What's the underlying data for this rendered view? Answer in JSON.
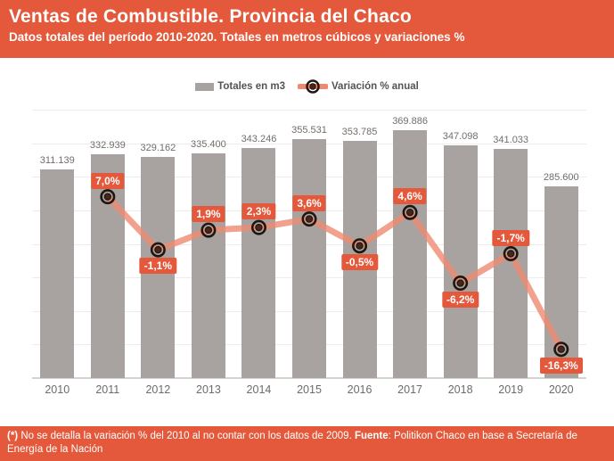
{
  "header": {
    "title": "Ventas de Combustible. Provincia del Chaco",
    "subtitle": "Datos totales del período 2010-2020. Totales en metros cúbicos y variaciones %"
  },
  "legend": {
    "bars_label": "Totales en m3",
    "line_label": "Variación % anual"
  },
  "footer": {
    "note_prefix": "(*)",
    "note": " No se detalla la variación % del 2010 al no contar con los datos de 2009. ",
    "source_label": "Fuente",
    "source": ": Politikon Chaco en base a Secretaría de Energía de la Nación"
  },
  "colors": {
    "accent_orange": "#E4593B",
    "line_salmon": "#ED8A70",
    "bar_gray": "#A8A3A0",
    "marker_ring": "#1F1610",
    "marker_center": "#48251A",
    "value_text": "#716E6C",
    "gridline": "#EEECEB"
  },
  "chart_data": {
    "type": "bar",
    "title": "Ventas de Combustible. Provincia del Chaco",
    "subtitle": "Datos totales del período 2010-2020. Totales en metros cúbicos y variaciones %",
    "categories": [
      "2010",
      "2011",
      "2012",
      "2013",
      "2014",
      "2015",
      "2016",
      "2017",
      "2018",
      "2019",
      "2020"
    ],
    "series": [
      {
        "name": "Totales en m3",
        "type": "bar",
        "values": [
          311139,
          332939,
          329162,
          335400,
          343246,
          355531,
          353785,
          369886,
          347098,
          341033,
          285600
        ],
        "labels": [
          "311.139",
          "332.939",
          "329.162",
          "335.400",
          "343.246",
          "355.531",
          "353.785",
          "369.886",
          "347.098",
          "341.033",
          "285.600"
        ]
      },
      {
        "name": "Variación % anual",
        "type": "line",
        "values": [
          null,
          7.0,
          -1.1,
          1.9,
          2.3,
          3.6,
          -0.5,
          4.6,
          -6.2,
          -1.7,
          -16.3
        ],
        "labels": [
          null,
          "7,0%",
          "-1,1%",
          "1,9%",
          "2,3%",
          "3,6%",
          "-0,5%",
          "4,6%",
          "-6,2%",
          "-1,7%",
          "-16,3%"
        ],
        "label_side": [
          null,
          "above",
          "below",
          "above",
          "above",
          "above",
          "below",
          "above",
          "below",
          "above",
          "below"
        ]
      }
    ],
    "xlabel": "",
    "ylabel": "",
    "ylim_bars": [
      0,
      400000
    ],
    "grid_step": 50000,
    "ylim_line": [
      -20.7,
      20.3
    ],
    "grid": true,
    "legend_position": "top-center",
    "y_axis_labels_visible": false
  }
}
